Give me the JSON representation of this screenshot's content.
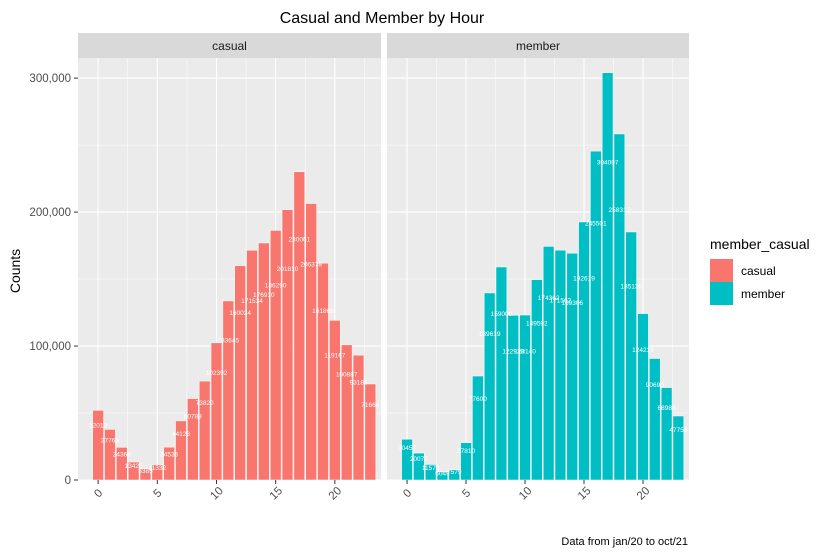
{
  "chart_data": {
    "type": "bar",
    "title": "Casual and Member by Hour",
    "ylabel": "Counts",
    "xlabel": "",
    "caption": "Data from jan/20 to oct/21",
    "ylim": [
      0,
      315000
    ],
    "xlim": [
      -1.7,
      23.9
    ],
    "y_ticks": [
      0,
      100000,
      200000,
      300000
    ],
    "y_tick_labels": [
      "0",
      "100,000",
      "200,000",
      "300,000"
    ],
    "x_ticks": [
      0,
      5,
      10,
      15,
      20
    ],
    "x_tick_labels": [
      "0",
      "5",
      "10",
      "15",
      "20"
    ],
    "x_tick_angle": -45,
    "grid": true,
    "legend": {
      "title": "member_casual",
      "position": "right",
      "entries": [
        {
          "label": "casual",
          "color": "#F8766D"
        },
        {
          "label": "member",
          "color": "#00BFC4"
        }
      ]
    },
    "facets": [
      {
        "strip": "casual",
        "color": "#F8766D",
        "x": [
          0,
          1,
          2,
          3,
          4,
          5,
          6,
          7,
          8,
          9,
          10,
          11,
          12,
          13,
          14,
          15,
          16,
          17,
          18,
          19,
          20,
          21,
          22,
          23
        ],
        "values": [
          52013,
          37768,
          24369,
          13425,
          8385,
          11332,
          24533,
          44123,
          60783,
          73820,
          102392,
          133645,
          160024,
          171534,
          176910,
          186290,
          201810,
          230061,
          206378,
          161866,
          119167,
          100887,
          93186,
          71668
        ],
        "labels": [
          "52013",
          "37768",
          "24369",
          "13425",
          "8385",
          "11332",
          "24533",
          "44123",
          "60783",
          "73820",
          "102392",
          "133645",
          "160024",
          "171534",
          "176910",
          "186290",
          "201810",
          "230061",
          "206378",
          "161866",
          "119167",
          "100887",
          "93186",
          "71668"
        ]
      },
      {
        "strip": "member",
        "color": "#00BFC4",
        "x": [
          0,
          1,
          2,
          3,
          4,
          5,
          6,
          7,
          8,
          9,
          10,
          11,
          12,
          13,
          14,
          15,
          16,
          17,
          18,
          19,
          20,
          21,
          22,
          23
        ],
        "values": [
          30457,
          20077,
          11578,
          6049,
          7579,
          27810,
          77600,
          139619,
          159000,
          122938,
          123140,
          149592,
          174362,
          171562,
          169306,
          192619,
          245501,
          304007,
          258317,
          185136,
          124216,
          90690,
          68986,
          47759
        ],
        "labels": [
          "30457",
          "20077",
          "11578",
          "6049",
          "7579",
          "27810",
          "77600",
          "139619",
          "159000",
          "122938",
          "123140",
          "149592",
          "174362",
          "171562",
          "169306",
          "192619",
          "245501",
          "304007",
          "258317",
          "185136",
          "124216",
          "90690",
          "68986",
          "47759"
        ]
      }
    ]
  }
}
